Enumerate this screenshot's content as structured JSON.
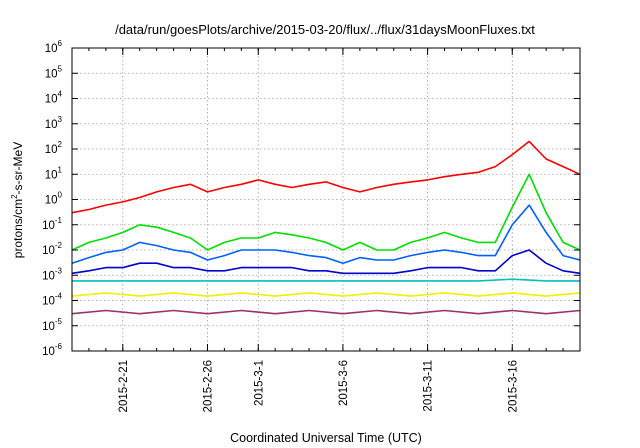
{
  "chart_data": {
    "type": "line",
    "title": "/data/run/goesPlots/archive/2015-03-20/flux/../flux/31daysMoonFluxes.txt",
    "xlabel": "Coordinated Universal Time (UTC)",
    "ylabel": {
      "base": "protons/cm",
      "sup": "2",
      "rest": "-s-sr-MeV"
    },
    "yscale": "log",
    "ylim": [
      1e-06,
      1000000.0
    ],
    "xlim": [
      "2015-02-18",
      "2015-03-20"
    ],
    "grid": true,
    "legend": "none",
    "x_ticks": [
      {
        "date": "2015-02-21",
        "label": "2015-2-21"
      },
      {
        "date": "2015-02-26",
        "label": "2015-2-26"
      },
      {
        "date": "2015-03-01",
        "label": "2015-3-1"
      },
      {
        "date": "2015-03-06",
        "label": "2015-3-6"
      },
      {
        "date": "2015-03-11",
        "label": "2015-3-11"
      },
      {
        "date": "2015-03-16",
        "label": "2015-3-16"
      }
    ],
    "y_ticks": [
      {
        "value": 1e-06,
        "base": "10",
        "exp": "-6"
      },
      {
        "value": 1e-05,
        "base": "10",
        "exp": "-5"
      },
      {
        "value": 0.0001,
        "base": "10",
        "exp": "-4"
      },
      {
        "value": 0.001,
        "base": "10",
        "exp": "-3"
      },
      {
        "value": 0.01,
        "base": "10",
        "exp": "-2"
      },
      {
        "value": 0.1,
        "base": "10",
        "exp": "-1"
      },
      {
        "value": 1,
        "base": "10",
        "exp": "0"
      },
      {
        "value": 10,
        "base": "10",
        "exp": "1"
      },
      {
        "value": 100,
        "base": "10",
        "exp": "2"
      },
      {
        "value": 1000,
        "base": "10",
        "exp": "3"
      },
      {
        "value": 10000,
        "base": "10",
        "exp": "4"
      },
      {
        "value": 100000,
        "base": "10",
        "exp": "5"
      },
      {
        "value": 1000000,
        "base": "10",
        "exp": "6"
      }
    ],
    "series": [
      {
        "color": "#ff0000",
        "x": [
          "2015-02-18",
          "2015-02-19",
          "2015-02-20",
          "2015-02-21",
          "2015-02-22",
          "2015-02-23",
          "2015-02-24",
          "2015-02-25",
          "2015-02-26",
          "2015-02-27",
          "2015-02-28",
          "2015-03-01",
          "2015-03-02",
          "2015-03-03",
          "2015-03-04",
          "2015-03-05",
          "2015-03-06",
          "2015-03-07",
          "2015-03-08",
          "2015-03-09",
          "2015-03-10",
          "2015-03-11",
          "2015-03-12",
          "2015-03-13",
          "2015-03-14",
          "2015-03-15",
          "2015-03-16",
          "2015-03-17",
          "2015-03-18",
          "2015-03-19",
          "2015-03-20"
        ],
        "y": [
          0.3,
          0.4,
          0.6,
          0.8,
          1.2,
          2,
          3,
          4,
          2,
          3,
          4,
          6,
          4,
          3,
          4,
          5,
          3,
          2,
          3,
          4,
          5,
          6,
          8,
          10,
          12,
          20,
          60,
          200,
          40,
          20,
          10
        ]
      },
      {
        "color": "#00e000",
        "x": [
          "2015-02-18",
          "2015-02-19",
          "2015-02-20",
          "2015-02-21",
          "2015-02-22",
          "2015-02-23",
          "2015-02-24",
          "2015-02-25",
          "2015-02-26",
          "2015-02-27",
          "2015-02-28",
          "2015-03-01",
          "2015-03-02",
          "2015-03-03",
          "2015-03-04",
          "2015-03-05",
          "2015-03-06",
          "2015-03-07",
          "2015-03-08",
          "2015-03-09",
          "2015-03-10",
          "2015-03-11",
          "2015-03-12",
          "2015-03-13",
          "2015-03-14",
          "2015-03-15",
          "2015-03-16",
          "2015-03-17",
          "2015-03-18",
          "2015-03-19",
          "2015-03-20"
        ],
        "y": [
          0.01,
          0.02,
          0.03,
          0.05,
          0.1,
          0.08,
          0.05,
          0.03,
          0.01,
          0.02,
          0.03,
          0.03,
          0.05,
          0.04,
          0.03,
          0.02,
          0.01,
          0.02,
          0.01,
          0.01,
          0.02,
          0.03,
          0.05,
          0.03,
          0.02,
          0.02,
          0.5,
          10,
          0.3,
          0.02,
          0.01
        ]
      },
      {
        "color": "#0060ff",
        "x": [
          "2015-02-18",
          "2015-02-19",
          "2015-02-20",
          "2015-02-21",
          "2015-02-22",
          "2015-02-23",
          "2015-02-24",
          "2015-02-25",
          "2015-02-26",
          "2015-02-27",
          "2015-02-28",
          "2015-03-01",
          "2015-03-02",
          "2015-03-03",
          "2015-03-04",
          "2015-03-05",
          "2015-03-06",
          "2015-03-07",
          "2015-03-08",
          "2015-03-09",
          "2015-03-10",
          "2015-03-11",
          "2015-03-12",
          "2015-03-13",
          "2015-03-14",
          "2015-03-15",
          "2015-03-16",
          "2015-03-17",
          "2015-03-18",
          "2015-03-19",
          "2015-03-20"
        ],
        "y": [
          0.003,
          0.005,
          0.008,
          0.01,
          0.02,
          0.015,
          0.01,
          0.008,
          0.004,
          0.006,
          0.01,
          0.01,
          0.01,
          0.008,
          0.006,
          0.005,
          0.003,
          0.005,
          0.004,
          0.004,
          0.006,
          0.008,
          0.01,
          0.008,
          0.006,
          0.006,
          0.1,
          0.6,
          0.05,
          0.006,
          0.004
        ]
      },
      {
        "color": "#0000d0",
        "x": [
          "2015-02-18",
          "2015-02-19",
          "2015-02-20",
          "2015-02-21",
          "2015-02-22",
          "2015-02-23",
          "2015-02-24",
          "2015-02-25",
          "2015-02-26",
          "2015-02-27",
          "2015-02-28",
          "2015-03-01",
          "2015-03-02",
          "2015-03-03",
          "2015-03-04",
          "2015-03-05",
          "2015-03-06",
          "2015-03-07",
          "2015-03-08",
          "2015-03-09",
          "2015-03-10",
          "2015-03-11",
          "2015-03-12",
          "2015-03-13",
          "2015-03-14",
          "2015-03-15",
          "2015-03-16",
          "2015-03-17",
          "2015-03-18",
          "2015-03-19",
          "2015-03-20"
        ],
        "y": [
          0.0012,
          0.0015,
          0.002,
          0.002,
          0.003,
          0.003,
          0.002,
          0.002,
          0.0015,
          0.0015,
          0.002,
          0.002,
          0.002,
          0.002,
          0.0015,
          0.0015,
          0.0012,
          0.0012,
          0.0012,
          0.0012,
          0.0015,
          0.002,
          0.002,
          0.002,
          0.0015,
          0.0015,
          0.006,
          0.01,
          0.003,
          0.0015,
          0.0012
        ]
      },
      {
        "color": "#00c0c0",
        "x": [
          "2015-02-18",
          "2015-02-20",
          "2015-02-22",
          "2015-02-24",
          "2015-02-26",
          "2015-02-28",
          "2015-03-02",
          "2015-03-04",
          "2015-03-06",
          "2015-03-08",
          "2015-03-10",
          "2015-03-12",
          "2015-03-14",
          "2015-03-16",
          "2015-03-18",
          "2015-03-20"
        ],
        "y": [
          0.0006,
          0.0006,
          0.0006,
          0.0006,
          0.0006,
          0.0006,
          0.0006,
          0.0006,
          0.0006,
          0.0006,
          0.0006,
          0.0006,
          0.0006,
          0.0007,
          0.0006,
          0.0006
        ]
      },
      {
        "color": "#f0f000",
        "x": [
          "2015-02-18",
          "2015-02-20",
          "2015-02-22",
          "2015-02-24",
          "2015-02-26",
          "2015-02-28",
          "2015-03-02",
          "2015-03-04",
          "2015-03-06",
          "2015-03-08",
          "2015-03-10",
          "2015-03-12",
          "2015-03-14",
          "2015-03-16",
          "2015-03-18",
          "2015-03-20"
        ],
        "y": [
          0.00015,
          0.0002,
          0.00015,
          0.0002,
          0.00015,
          0.0002,
          0.00015,
          0.0002,
          0.00015,
          0.0002,
          0.00015,
          0.0002,
          0.00015,
          0.0002,
          0.00015,
          0.0002
        ]
      },
      {
        "color": "#993366",
        "x": [
          "2015-02-18",
          "2015-02-20",
          "2015-02-22",
          "2015-02-24",
          "2015-02-26",
          "2015-02-28",
          "2015-03-02",
          "2015-03-04",
          "2015-03-06",
          "2015-03-08",
          "2015-03-10",
          "2015-03-12",
          "2015-03-14",
          "2015-03-16",
          "2015-03-18",
          "2015-03-20"
        ],
        "y": [
          3e-05,
          4e-05,
          3e-05,
          4e-05,
          3e-05,
          4e-05,
          3e-05,
          4e-05,
          3e-05,
          4e-05,
          3e-05,
          4e-05,
          3e-05,
          4e-05,
          3e-05,
          4e-05
        ]
      }
    ]
  }
}
